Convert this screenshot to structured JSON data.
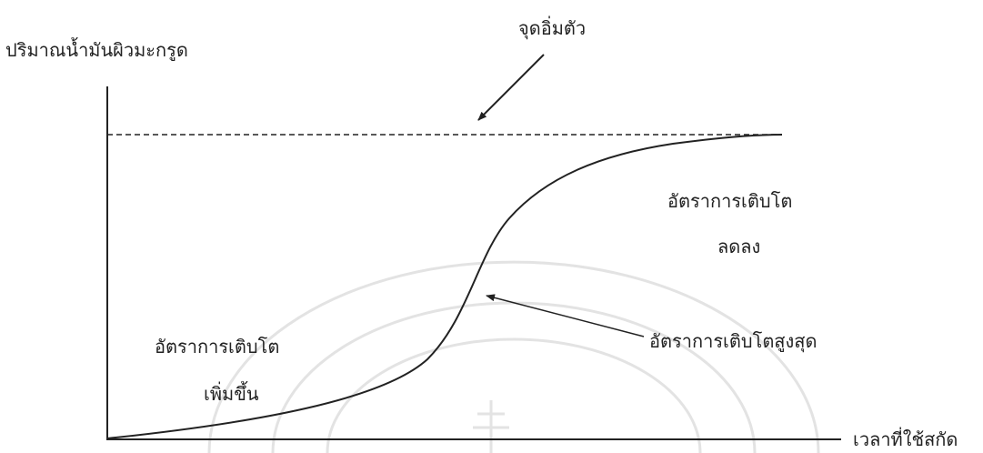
{
  "diagram": {
    "y_axis_label": "ปริมาณน้ำมันผิวมะกรูด",
    "x_axis_label": "เวลาที่ใช้สกัด",
    "saturation_label": "จุดอิ่มตัว",
    "increasing_rate_label": [
      "อัตราการเติบโต",
      "เพิ่มขึ้น"
    ],
    "decreasing_rate_label": [
      "อัตราการเติบโต",
      "ลดลง"
    ],
    "max_rate_label": "อัตราการเติบโตสูงสุด"
  },
  "colors": {
    "ink": "#222222",
    "watermark": "#e3e3e3"
  }
}
